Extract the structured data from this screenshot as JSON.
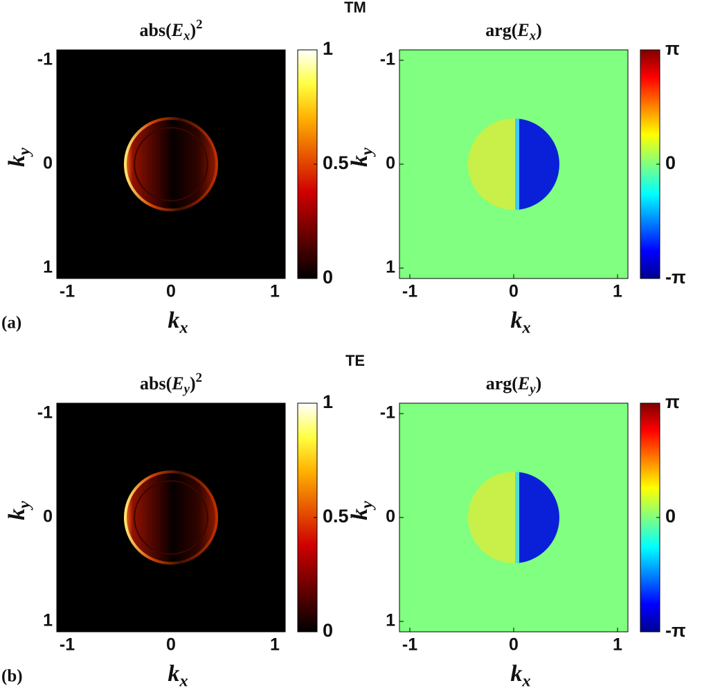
{
  "figure": {
    "group_titles": [
      "TM",
      "TE"
    ],
    "panel_labels": [
      "(a)",
      "(b)"
    ]
  },
  "chart_data": [
    {
      "type": "image",
      "title": {
        "function": "abs(",
        "symbol": "E",
        "subscript": "x",
        "close": ")",
        "superscript": "2"
      },
      "xlabel": {
        "symbol": "k",
        "subscript": "x"
      },
      "ylabel": {
        "symbol": "k",
        "subscript": "y"
      },
      "xlim": [
        -1.1,
        1.1
      ],
      "ylim": [
        -1.1,
        1.1
      ],
      "y_reversed": true,
      "xticks": [
        -1,
        0,
        1
      ],
      "yticks": [
        -1,
        0,
        1
      ],
      "colorbar": {
        "colormap": "hot",
        "lim": [
          0,
          1
        ],
        "ticks": [
          0,
          0.5,
          1
        ]
      }
    },
    {
      "type": "image",
      "title": {
        "function": "arg(",
        "symbol": "E",
        "subscript": "x",
        "close": ")"
      },
      "xlabel": {
        "symbol": "k",
        "subscript": "x"
      },
      "ylabel": {
        "symbol": "k",
        "subscript": "y"
      },
      "xlim": [
        -1.1,
        1.1
      ],
      "ylim": [
        -1.1,
        1.1
      ],
      "y_reversed": true,
      "xticks": [
        -1,
        0,
        1
      ],
      "yticks": [
        -1,
        0,
        1
      ],
      "colorbar": {
        "colormap": "jet",
        "lim": [
          -3.14159,
          3.14159
        ],
        "ticks": [
          {
            "value": -3.14159,
            "label": "-π"
          },
          0,
          {
            "value": 3.14159,
            "label": "π"
          }
        ]
      }
    },
    {
      "type": "image",
      "title": {
        "function": "abs(",
        "symbol": "E",
        "subscript": "y",
        "close": ")",
        "superscript": "2"
      },
      "xlabel": {
        "symbol": "k",
        "subscript": "x"
      },
      "ylabel": {
        "symbol": "k",
        "subscript": "y"
      },
      "xlim": [
        -1.1,
        1.1
      ],
      "ylim": [
        -1.1,
        1.1
      ],
      "y_reversed": true,
      "xticks": [
        -1,
        0,
        1
      ],
      "yticks": [
        -1,
        0,
        1
      ],
      "colorbar": {
        "colormap": "hot",
        "lim": [
          0,
          1
        ],
        "ticks": [
          0,
          0.5,
          1
        ]
      }
    },
    {
      "type": "image",
      "title": {
        "function": "arg(",
        "symbol": "E",
        "subscript": "y",
        "close": ")"
      },
      "xlabel": {
        "symbol": "k",
        "subscript": "x"
      },
      "ylabel": {
        "symbol": "k",
        "subscript": "y"
      },
      "xlim": [
        -1.1,
        1.1
      ],
      "ylim": [
        -1.1,
        1.1
      ],
      "y_reversed": true,
      "xticks": [
        -1,
        0,
        1
      ],
      "yticks": [
        -1,
        0,
        1
      ],
      "colorbar": {
        "colormap": "jet",
        "lim": [
          -3.14159,
          3.14159
        ],
        "ticks": [
          {
            "value": -3.14159,
            "label": "-π"
          },
          0,
          {
            "value": 3.14159,
            "label": "π"
          }
        ]
      }
    }
  ]
}
